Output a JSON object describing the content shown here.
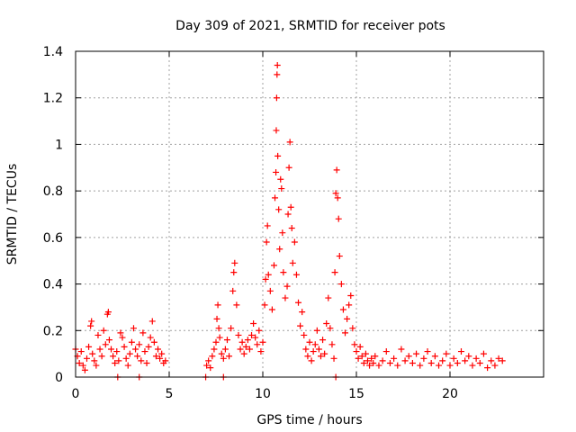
{
  "chart_data": {
    "type": "scatter",
    "title": "Day 309 of 2021, SRMTID for receiver pots",
    "xlabel": "GPS time / hours",
    "ylabel": "SRMTID / TECUs",
    "xlim": [
      0,
      25
    ],
    "ylim": [
      0,
      1.4
    ],
    "grid": true,
    "marker": "+",
    "xticks": [
      {
        "value": 0,
        "label": "0"
      },
      {
        "value": 5,
        "label": "5"
      },
      {
        "value": 10,
        "label": "10"
      },
      {
        "value": 15,
        "label": "15"
      },
      {
        "value": 20,
        "label": "20"
      }
    ],
    "yticks": [
      {
        "value": 0,
        "label": "0"
      },
      {
        "value": 0.2,
        "label": "0.2"
      },
      {
        "value": 0.4,
        "label": "0.4"
      },
      {
        "value": 0.6,
        "label": "0.6"
      },
      {
        "value": 0.8,
        "label": "0.8"
      },
      {
        "value": 1.0,
        "label": "1"
      },
      {
        "value": 1.2,
        "label": "1.2"
      },
      {
        "value": 1.4,
        "label": "1.4"
      }
    ],
    "series": [
      {
        "name": "SRMTID",
        "color": "#ff0000",
        "points": [
          [
            0.0,
            0.12
          ],
          [
            0.1,
            0.09
          ],
          [
            0.2,
            0.06
          ],
          [
            0.3,
            0.11
          ],
          [
            0.4,
            0.05
          ],
          [
            0.5,
            0.03
          ],
          [
            0.6,
            0.08
          ],
          [
            0.7,
            0.13
          ],
          [
            0.8,
            0.22
          ],
          [
            0.85,
            0.24
          ],
          [
            0.9,
            0.1
          ],
          [
            1.0,
            0.07
          ],
          [
            1.1,
            0.05
          ],
          [
            1.2,
            0.18
          ],
          [
            1.3,
            0.12
          ],
          [
            1.4,
            0.09
          ],
          [
            1.5,
            0.2
          ],
          [
            1.6,
            0.14
          ],
          [
            1.7,
            0.27
          ],
          [
            1.75,
            0.28
          ],
          [
            1.8,
            0.16
          ],
          [
            1.9,
            0.12
          ],
          [
            2.0,
            0.09
          ],
          [
            2.1,
            0.06
          ],
          [
            2.2,
            0.11
          ],
          [
            2.3,
            0.07
          ],
          [
            2.4,
            0.19
          ],
          [
            2.5,
            0.17
          ],
          [
            2.6,
            0.13
          ],
          [
            2.7,
            0.08
          ],
          [
            2.8,
            0.05
          ],
          [
            2.9,
            0.1
          ],
          [
            3.0,
            0.15
          ],
          [
            3.1,
            0.21
          ],
          [
            3.2,
            0.12
          ],
          [
            3.3,
            0.09
          ],
          [
            3.4,
            0.14
          ],
          [
            3.5,
            0.07
          ],
          [
            3.6,
            0.19
          ],
          [
            3.7,
            0.11
          ],
          [
            3.8,
            0.06
          ],
          [
            3.9,
            0.13
          ],
          [
            4.0,
            0.17
          ],
          [
            4.1,
            0.24
          ],
          [
            4.2,
            0.15
          ],
          [
            4.3,
            0.09
          ],
          [
            4.4,
            0.12
          ],
          [
            4.5,
            0.08
          ],
          [
            4.6,
            0.1
          ],
          [
            4.7,
            0.06
          ],
          [
            4.8,
            0.07
          ],
          [
            2.25,
            0.0
          ],
          [
            3.4,
            0.0
          ],
          [
            6.95,
            0.0
          ],
          [
            7.9,
            0.0
          ],
          [
            13.9,
            0.0
          ],
          [
            7.0,
            0.05
          ],
          [
            7.1,
            0.07
          ],
          [
            7.2,
            0.04
          ],
          [
            7.3,
            0.09
          ],
          [
            7.4,
            0.12
          ],
          [
            7.5,
            0.15
          ],
          [
            7.55,
            0.25
          ],
          [
            7.6,
            0.31
          ],
          [
            7.65,
            0.21
          ],
          [
            7.7,
            0.17
          ],
          [
            7.8,
            0.1
          ],
          [
            7.9,
            0.08
          ],
          [
            8.0,
            0.12
          ],
          [
            8.1,
            0.16
          ],
          [
            8.2,
            0.09
          ],
          [
            8.3,
            0.21
          ],
          [
            8.4,
            0.37
          ],
          [
            8.45,
            0.45
          ],
          [
            8.5,
            0.49
          ],
          [
            8.6,
            0.31
          ],
          [
            8.7,
            0.18
          ],
          [
            8.8,
            0.12
          ],
          [
            8.9,
            0.15
          ],
          [
            9.0,
            0.1
          ],
          [
            9.1,
            0.13
          ],
          [
            9.2,
            0.16
          ],
          [
            9.3,
            0.12
          ],
          [
            9.4,
            0.18
          ],
          [
            9.5,
            0.23
          ],
          [
            9.6,
            0.17
          ],
          [
            9.7,
            0.14
          ],
          [
            9.8,
            0.2
          ],
          [
            9.9,
            0.11
          ],
          [
            10.0,
            0.15
          ],
          [
            10.1,
            0.31
          ],
          [
            10.15,
            0.42
          ],
          [
            10.2,
            0.58
          ],
          [
            10.25,
            0.65
          ],
          [
            10.3,
            0.44
          ],
          [
            10.4,
            0.37
          ],
          [
            10.5,
            0.29
          ],
          [
            10.6,
            0.48
          ],
          [
            10.65,
            0.77
          ],
          [
            10.7,
            0.88
          ],
          [
            10.72,
            1.06
          ],
          [
            10.74,
            1.2
          ],
          [
            10.76,
            1.3
          ],
          [
            10.78,
            1.34
          ],
          [
            10.8,
            0.95
          ],
          [
            10.85,
            0.72
          ],
          [
            10.9,
            0.55
          ],
          [
            10.95,
            0.85
          ],
          [
            11.0,
            0.81
          ],
          [
            11.05,
            0.62
          ],
          [
            11.1,
            0.45
          ],
          [
            11.2,
            0.34
          ],
          [
            11.3,
            0.39
          ],
          [
            11.35,
            0.7
          ],
          [
            11.4,
            0.9
          ],
          [
            11.45,
            1.01
          ],
          [
            11.5,
            0.73
          ],
          [
            11.55,
            0.64
          ],
          [
            11.6,
            0.49
          ],
          [
            11.7,
            0.58
          ],
          [
            11.8,
            0.44
          ],
          [
            11.9,
            0.32
          ],
          [
            12.0,
            0.22
          ],
          [
            12.1,
            0.28
          ],
          [
            12.2,
            0.18
          ],
          [
            12.3,
            0.12
          ],
          [
            12.4,
            0.09
          ],
          [
            12.5,
            0.15
          ],
          [
            12.6,
            0.07
          ],
          [
            12.7,
            0.11
          ],
          [
            12.8,
            0.14
          ],
          [
            12.9,
            0.2
          ],
          [
            13.0,
            0.12
          ],
          [
            13.1,
            0.09
          ],
          [
            13.2,
            0.16
          ],
          [
            13.3,
            0.1
          ],
          [
            13.4,
            0.23
          ],
          [
            13.5,
            0.34
          ],
          [
            13.6,
            0.21
          ],
          [
            13.7,
            0.14
          ],
          [
            13.8,
            0.08
          ],
          [
            13.85,
            0.45
          ],
          [
            13.9,
            0.79
          ],
          [
            13.95,
            0.89
          ],
          [
            14.0,
            0.77
          ],
          [
            14.05,
            0.68
          ],
          [
            14.1,
            0.52
          ],
          [
            14.2,
            0.4
          ],
          [
            14.3,
            0.29
          ],
          [
            14.4,
            0.19
          ],
          [
            14.5,
            0.25
          ],
          [
            14.6,
            0.31
          ],
          [
            14.7,
            0.35
          ],
          [
            14.8,
            0.21
          ],
          [
            14.9,
            0.14
          ],
          [
            15.0,
            0.11
          ],
          [
            15.1,
            0.08
          ],
          [
            15.2,
            0.13
          ],
          [
            15.3,
            0.09
          ],
          [
            15.4,
            0.06
          ],
          [
            15.5,
            0.1
          ],
          [
            15.6,
            0.07
          ],
          [
            15.7,
            0.05
          ],
          [
            15.8,
            0.08
          ],
          [
            15.9,
            0.06
          ],
          [
            16.0,
            0.09
          ],
          [
            16.2,
            0.05
          ],
          [
            16.4,
            0.07
          ],
          [
            16.6,
            0.11
          ],
          [
            16.8,
            0.06
          ],
          [
            17.0,
            0.08
          ],
          [
            17.2,
            0.05
          ],
          [
            17.4,
            0.12
          ],
          [
            17.6,
            0.07
          ],
          [
            17.8,
            0.09
          ],
          [
            18.0,
            0.06
          ],
          [
            18.2,
            0.1
          ],
          [
            18.4,
            0.05
          ],
          [
            18.6,
            0.08
          ],
          [
            18.8,
            0.11
          ],
          [
            19.0,
            0.06
          ],
          [
            19.2,
            0.09
          ],
          [
            19.4,
            0.05
          ],
          [
            19.6,
            0.07
          ],
          [
            19.8,
            0.1
          ],
          [
            20.0,
            0.05
          ],
          [
            20.2,
            0.08
          ],
          [
            20.4,
            0.06
          ],
          [
            20.6,
            0.11
          ],
          [
            20.8,
            0.07
          ],
          [
            21.0,
            0.09
          ],
          [
            21.2,
            0.05
          ],
          [
            21.4,
            0.08
          ],
          [
            21.6,
            0.06
          ],
          [
            21.8,
            0.1
          ],
          [
            22.0,
            0.04
          ],
          [
            22.2,
            0.07
          ],
          [
            22.4,
            0.05
          ],
          [
            22.6,
            0.08
          ],
          [
            22.8,
            0.07
          ]
        ]
      }
    ]
  }
}
